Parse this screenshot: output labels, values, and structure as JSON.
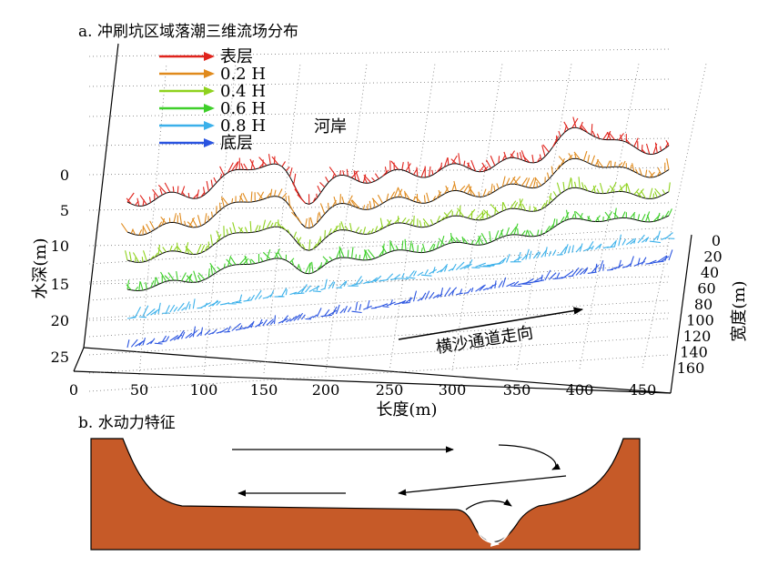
{
  "panel_a": {
    "caption": "a. 冲刷坑区域落潮三维流场分布",
    "legend": [
      {
        "label": "表层",
        "color": "#e0231c"
      },
      {
        "label": "0.2 H",
        "color": "#e08a1c"
      },
      {
        "label": "0.4 H",
        "color": "#8fd21e"
      },
      {
        "label": "0.6 H",
        "color": "#3fcf2a"
      },
      {
        "label": "0.8 H",
        "color": "#3ab0ea"
      },
      {
        "label": "底层",
        "color": "#2a54e0"
      }
    ],
    "bank_label": "河岸",
    "channel_label": "横沙通道走向",
    "y_axis": {
      "label": "水深(m)",
      "ticks": [
        "0",
        "5",
        "10",
        "15",
        "20",
        "25"
      ]
    },
    "x_axis": {
      "label": "长度(m)",
      "ticks": [
        "0",
        "50",
        "100",
        "150",
        "200",
        "250",
        "300",
        "350",
        "400",
        "450"
      ]
    },
    "z_axis": {
      "label": "宽度(m)",
      "ticks": [
        "0",
        "20",
        "40",
        "60",
        "80",
        "100",
        "120",
        "140",
        "160"
      ]
    }
  },
  "panel_b": {
    "caption": "b. 水动力特征",
    "bed_color": "#c65a28"
  }
}
